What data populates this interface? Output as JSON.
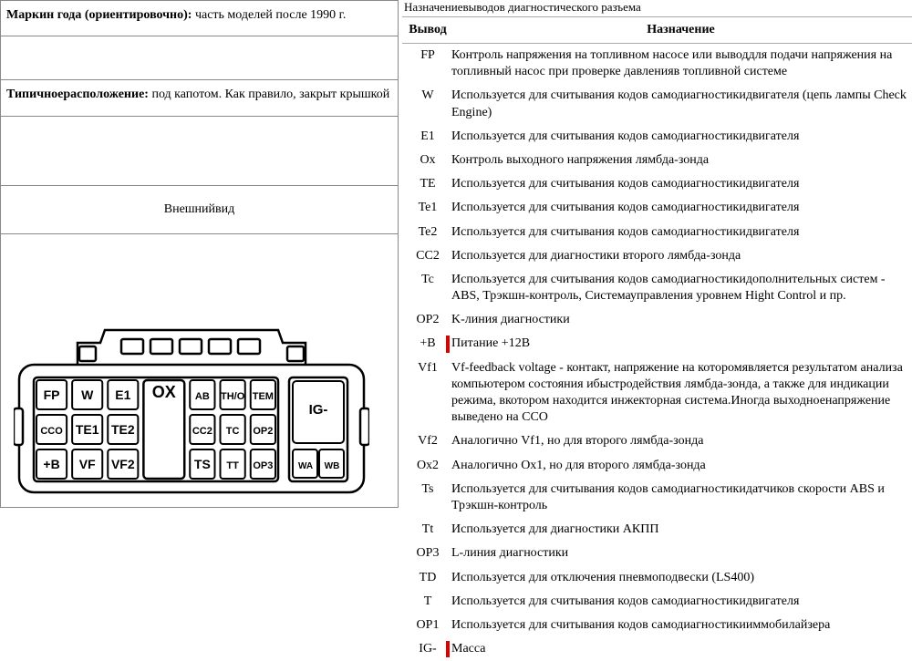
{
  "left": {
    "year_label": "Маркин года (ориентировочно):",
    "year_value": " часть моделей после 1990 г.",
    "loc_label": "Типичноерасположение:",
    "loc_value": " под капотом. Как правило, закрыт крышкой",
    "appearance": "Внешнийвид"
  },
  "right": {
    "title": "Назначениевыводов диагностического разъема",
    "h1": "Вывод",
    "h2": "Назначение",
    "rows": [
      {
        "pin": "FP",
        "desc": "Контроль напряжения на топливном насосе или выводдля подачи напряжения на топливный насос при проверке давленияв топливной системе",
        "mark": false
      },
      {
        "pin": "W",
        "desc": "Используется для считывания кодов самодиагностикидвигателя (цепь лампы Check Engine)",
        "mark": false
      },
      {
        "pin": "E1",
        "desc": "Используется для считывания кодов самодиагностикидвигателя",
        "mark": false
      },
      {
        "pin": "Ox",
        "desc": "Контроль выходного напряжения лямбда-зонда",
        "mark": false
      },
      {
        "pin": "TE",
        "desc": "Используется для считывания кодов самодиагностикидвигателя",
        "mark": false
      },
      {
        "pin": "Te1",
        "desc": "Используется для считывания кодов самодиагностикидвигателя",
        "mark": false
      },
      {
        "pin": "Te2",
        "desc": "Используется для считывания кодов самодиагностикидвигателя",
        "mark": false
      },
      {
        "pin": "CC2",
        "desc": "Используется для диагностики второго лямбда-зонда",
        "mark": false
      },
      {
        "pin": "Tc",
        "desc": "Используется для считывания кодов самодиагностикидополнительных систем - ABS, Трэкшн-контроль, Системауправления уровнем Hight Control и пр.",
        "mark": false
      },
      {
        "pin": "OP2",
        "desc": "K-линия диагностики",
        "mark": false
      },
      {
        "pin": "+B",
        "desc": "Питание +12В",
        "mark": true
      },
      {
        "pin": "Vf1",
        "desc": "Vf-feedback voltage - контакт, напряжение на которомявляется результатом анализа компьютером состояния ибыстродействия лямбда-зонда, а также для индикации режима, вкотором находится инжекторная система.Иногда выходноенапряжение выведено на CCO",
        "mark": false
      },
      {
        "pin": "Vf2",
        "desc": "Аналогично Vf1, но для второго лямбда-зонда",
        "mark": false
      },
      {
        "pin": "Ox2",
        "desc": "Аналогично Ox1, но для второго лямбда-зонда",
        "mark": false
      },
      {
        "pin": "Ts",
        "desc": "Используется для считывания кодов самодиагностикидатчиков скорости ABS и Трэкшн-контроль",
        "mark": false
      },
      {
        "pin": "Tt",
        "desc": "Используется для диагностики АКПП",
        "mark": false
      },
      {
        "pin": "OP3",
        "desc": "L-линия диагностики",
        "mark": false
      },
      {
        "pin": "TD",
        "desc": "Используется для отключения пневмоподвески (LS400)",
        "mark": false
      },
      {
        "pin": "T",
        "desc": "Используется для считывания кодов самодиагностикидвигателя",
        "mark": false
      },
      {
        "pin": "OP1",
        "desc": "Используется для считывания кодов самодиагностикииммобилайзера",
        "mark": false
      },
      {
        "pin": "IG-",
        "desc": "Масса",
        "mark": true
      }
    ]
  },
  "connector": {
    "rows": [
      [
        {
          "t": "FP",
          "w": 1
        },
        {
          "t": "W",
          "w": 1
        },
        {
          "t": "E1",
          "w": 1
        },
        {
          "t": "OX",
          "w": 1.3,
          "big": true
        },
        {
          "t": "AB",
          "w": 0.85,
          "small": true
        },
        {
          "t": "TH/O",
          "w": 0.85,
          "small": true
        },
        {
          "t": "TEM",
          "w": 0.85,
          "small": true
        }
      ],
      [
        {
          "t": "CCO",
          "w": 1,
          "small": true
        },
        {
          "t": "TE1",
          "w": 1
        },
        {
          "t": "TE2",
          "w": 1
        },
        {
          "t": "",
          "w": 1.3,
          "big": true
        },
        {
          "t": "CC2",
          "w": 0.85,
          "small": true
        },
        {
          "t": "TC",
          "w": 0.85,
          "small": true
        },
        {
          "t": "OP2",
          "w": 0.85,
          "small": true
        }
      ],
      [
        {
          "t": "+B",
          "w": 1
        },
        {
          "t": "VF",
          "w": 1
        },
        {
          "t": "VF2",
          "w": 1
        },
        {
          "t": "",
          "w": 1.3,
          "big": true
        },
        {
          "t": "TS",
          "w": 0.85
        },
        {
          "t": "TT",
          "w": 0.85,
          "small": true
        },
        {
          "t": "OP3",
          "w": 0.85,
          "small": true
        }
      ]
    ],
    "side": [
      {
        "t": "IG-",
        "row": 0
      },
      {
        "t": "WA",
        "row": 2,
        "half": "left"
      },
      {
        "t": "WB",
        "row": 2,
        "half": "right"
      }
    ]
  }
}
